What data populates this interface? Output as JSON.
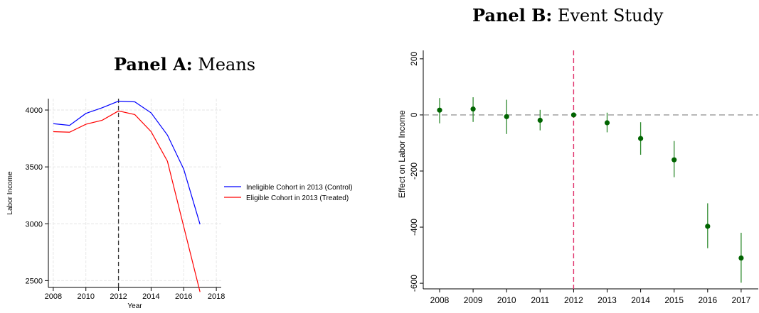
{
  "panel_a": {
    "title_bold": "Panel A:",
    "title_rest": " Means"
  },
  "panel_b": {
    "title_bold": "Panel B:",
    "title_rest": " Event Study"
  },
  "colors": {
    "control": "#0000ff",
    "treated": "#ff0000",
    "point": "#006400",
    "ci": "#2f8a2f",
    "event_line": "#e0306a",
    "zero_line": "#808080"
  },
  "chart_data": [
    {
      "type": "line",
      "xlabel": "Year",
      "ylabel": "Labor Income",
      "xlim": [
        2007.7,
        2018.3
      ],
      "ylim": [
        2440,
        4100
      ],
      "xticks": [
        2008,
        2010,
        2012,
        2014,
        2016,
        2018
      ],
      "yticks": [
        2500,
        3000,
        3500,
        4000
      ],
      "vline": 2012,
      "grid": true,
      "legend": "right",
      "x": [
        2008,
        2009,
        2010,
        2011,
        2012,
        2013,
        2014,
        2015,
        2016,
        2017
      ],
      "series": [
        {
          "name": "Ineligible Cohort in 2013 (Control)",
          "values": [
            3880,
            3865,
            3970,
            4020,
            4078,
            4072,
            3975,
            3780,
            3480,
            2995
          ]
        },
        {
          "name": "Eligible Cohort in 2013 (Treated)",
          "values": [
            3810,
            3805,
            3875,
            3910,
            3992,
            3960,
            3810,
            3550,
            2975,
            2400
          ]
        }
      ]
    },
    {
      "type": "scatter",
      "xlabel": "",
      "ylabel": "Effect on Labor Income",
      "ylim": [
        -620,
        230
      ],
      "yticks": [
        200,
        0,
        -200,
        -400,
        -600
      ],
      "categories": [
        "2008",
        "2009",
        "2010",
        "2011",
        "2012",
        "2013",
        "2014",
        "2015",
        "2016",
        "2017"
      ],
      "vline": "2012",
      "hline": 0,
      "values": [
        17,
        21,
        -6,
        -19,
        0,
        -28,
        -84,
        -160,
        -397,
        -510
      ],
      "ci_low": [
        -30,
        -25,
        -68,
        -55,
        0,
        -62,
        -142,
        -222,
        -475,
        -598
      ],
      "ci_high": [
        60,
        63,
        54,
        18,
        0,
        8,
        -26,
        -93,
        -315,
        -420
      ]
    }
  ]
}
